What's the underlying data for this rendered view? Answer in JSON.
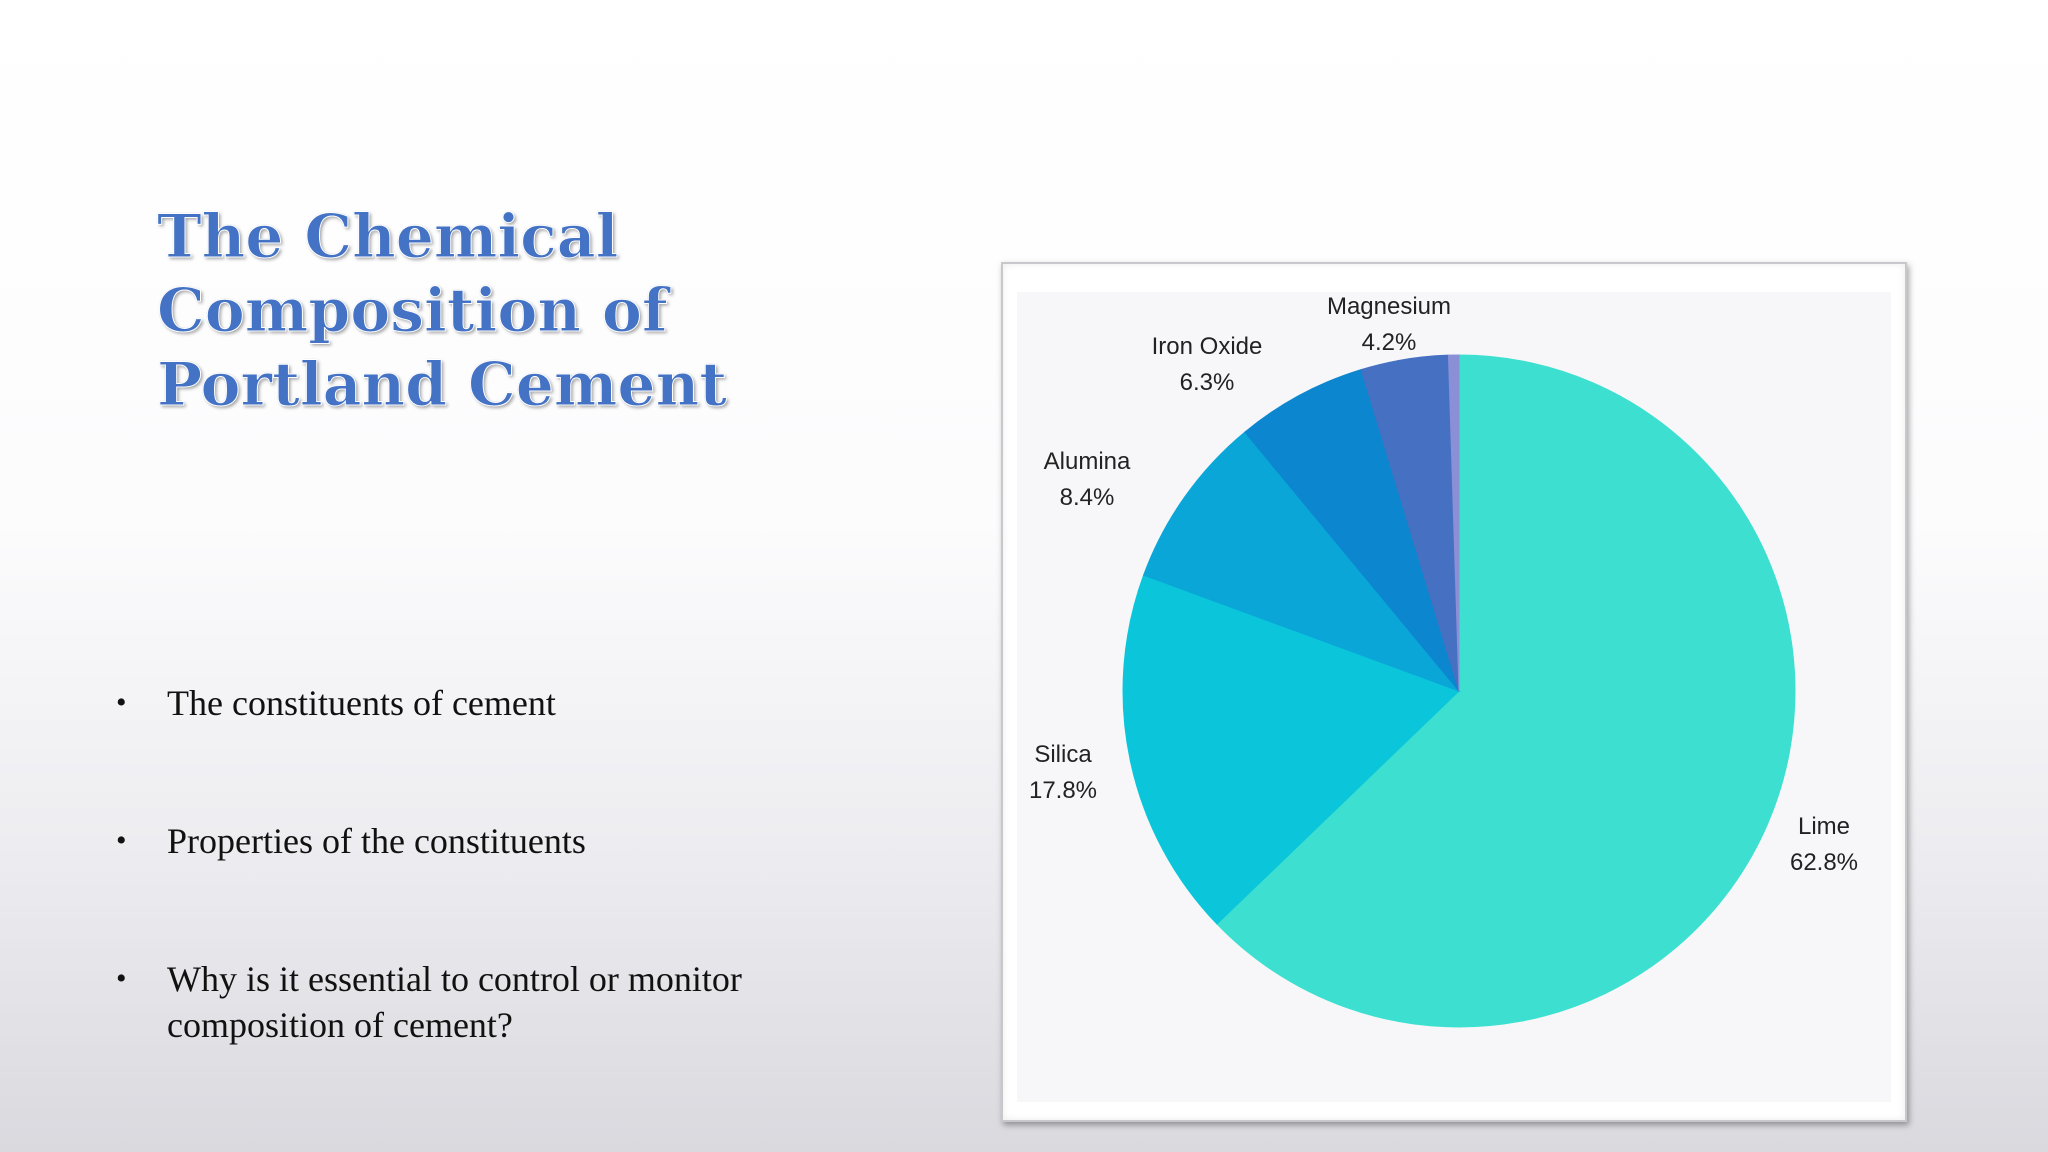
{
  "slide": {
    "title": "The Chemical Composition of Portland Cement",
    "bullets": [
      "The constituents of cement",
      "Properties of the constituents",
      "Why is it essential to control or monitor composition of cement?"
    ]
  },
  "chart_data": {
    "type": "pie",
    "slices": [
      {
        "label": "Lime",
        "value": 62.8,
        "value_label": "62.8%",
        "color": "#3de0d0"
      },
      {
        "label": "Silica",
        "value": 17.8,
        "value_label": "17.8%",
        "color": "#0bc6da"
      },
      {
        "label": "Alumina",
        "value": 8.4,
        "value_label": "8.4%",
        "color": "#0aa6d8"
      },
      {
        "label": "Iron Oxide",
        "value": 6.3,
        "value_label": "6.3%",
        "color": "#0c86cf"
      },
      {
        "label": "Magnesium",
        "value": 4.2,
        "value_label": "4.2%",
        "color": "#4670c2"
      },
      {
        "label": "",
        "value": 0.5,
        "value_label": "",
        "color": "#8b8fd6"
      }
    ],
    "start_angle_deg": 0,
    "direction": "clockwise",
    "legend": "none"
  }
}
